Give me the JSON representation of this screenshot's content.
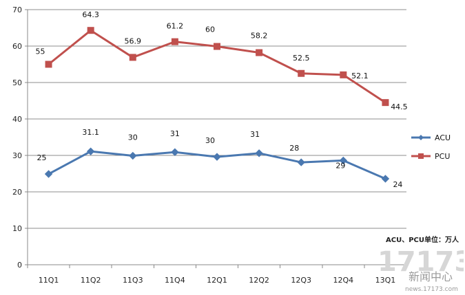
{
  "chart_data": {
    "type": "line",
    "categories": [
      "11Q1",
      "11Q2",
      "11Q3",
      "11Q4",
      "12Q1",
      "12Q2",
      "12Q3",
      "12Q4",
      "13Q1"
    ],
    "series": [
      {
        "name": "ACU",
        "values": [
          25,
          31.1,
          30,
          31,
          30,
          31,
          28,
          29,
          24
        ],
        "plotted": [
          24.9,
          31.1,
          29.9,
          30.9,
          29.6,
          30.6,
          28.1,
          28.6,
          23.6
        ],
        "color": "#4a78b0",
        "marker": "diamond"
      },
      {
        "name": "PCU",
        "values": [
          55,
          64.3,
          56.9,
          61.2,
          60,
          58.2,
          52.5,
          52.1,
          44.5
        ],
        "plotted": [
          55,
          64.3,
          56.9,
          61.2,
          59.9,
          58.2,
          52.5,
          52.1,
          44.5
        ],
        "color": "#c0504d",
        "marker": "square"
      }
    ],
    "labels": {
      "ACU": [
        "25",
        "31.1",
        "30",
        "31",
        "30",
        "31",
        "28",
        "29",
        "24"
      ],
      "PCU": [
        "55",
        "64.3",
        "56.9",
        "61.2",
        "60",
        "58.2",
        "52.5",
        "52.1",
        "44.5"
      ]
    },
    "yticks": [
      "0",
      "10",
      "20",
      "30",
      "40",
      "50",
      "60",
      "70"
    ],
    "ylim": [
      0,
      70
    ],
    "grid": true,
    "legend": "right",
    "title": "",
    "xlabel": "",
    "ylabel": ""
  },
  "unit_note": "ACU、PCU单位：万人",
  "watermark": {
    "number": "17173",
    "text": "新闻中心",
    "url": "news.17173.com"
  }
}
